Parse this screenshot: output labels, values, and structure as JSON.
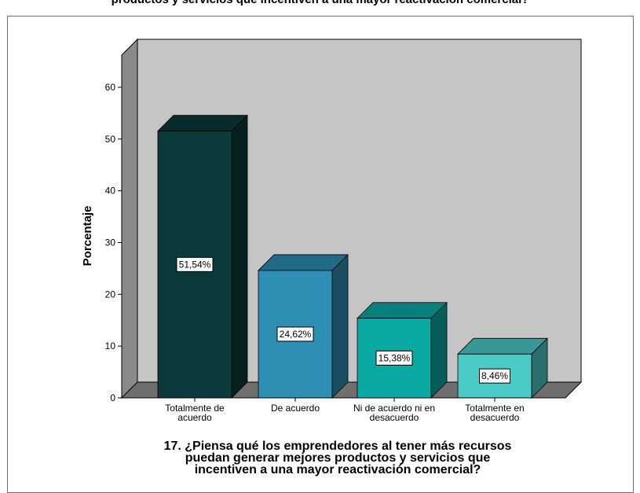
{
  "page_title": "productos y servicios que incentiven a una mayor reactivación comercial?",
  "chart_data": {
    "type": "bar",
    "title": "productos y servicios que incentiven a una mayor reactivación comercial?",
    "ylabel": "Porcentaje",
    "xlabel_lines": [
      "17. ¿Piensa qué los emprendedores al tener más recursos",
      "puedan generar mejores productos y servicios que",
      "incentiven a una mayor reactivación comercial?"
    ],
    "categories": [
      [
        "Totalmente de",
        "acuerdo"
      ],
      [
        "De acuerdo"
      ],
      [
        "Ni de acuerdo ni en",
        "desacuerdo"
      ],
      [
        "Totalmente en",
        "desacuerdo"
      ]
    ],
    "values": [
      51.54,
      24.62,
      15.38,
      8.46
    ],
    "data_labels": [
      "51,54%",
      "24,62%",
      "15,38%",
      "8,46%"
    ],
    "colors": [
      "#0a3a39",
      "#2c8fb3",
      "#0aa9a3",
      "#4ccac8"
    ],
    "ylim": [
      0,
      60
    ],
    "yticks": [
      0,
      10,
      20,
      30,
      40,
      50,
      60
    ],
    "grid": false,
    "legend": "none",
    "style": "3d"
  }
}
